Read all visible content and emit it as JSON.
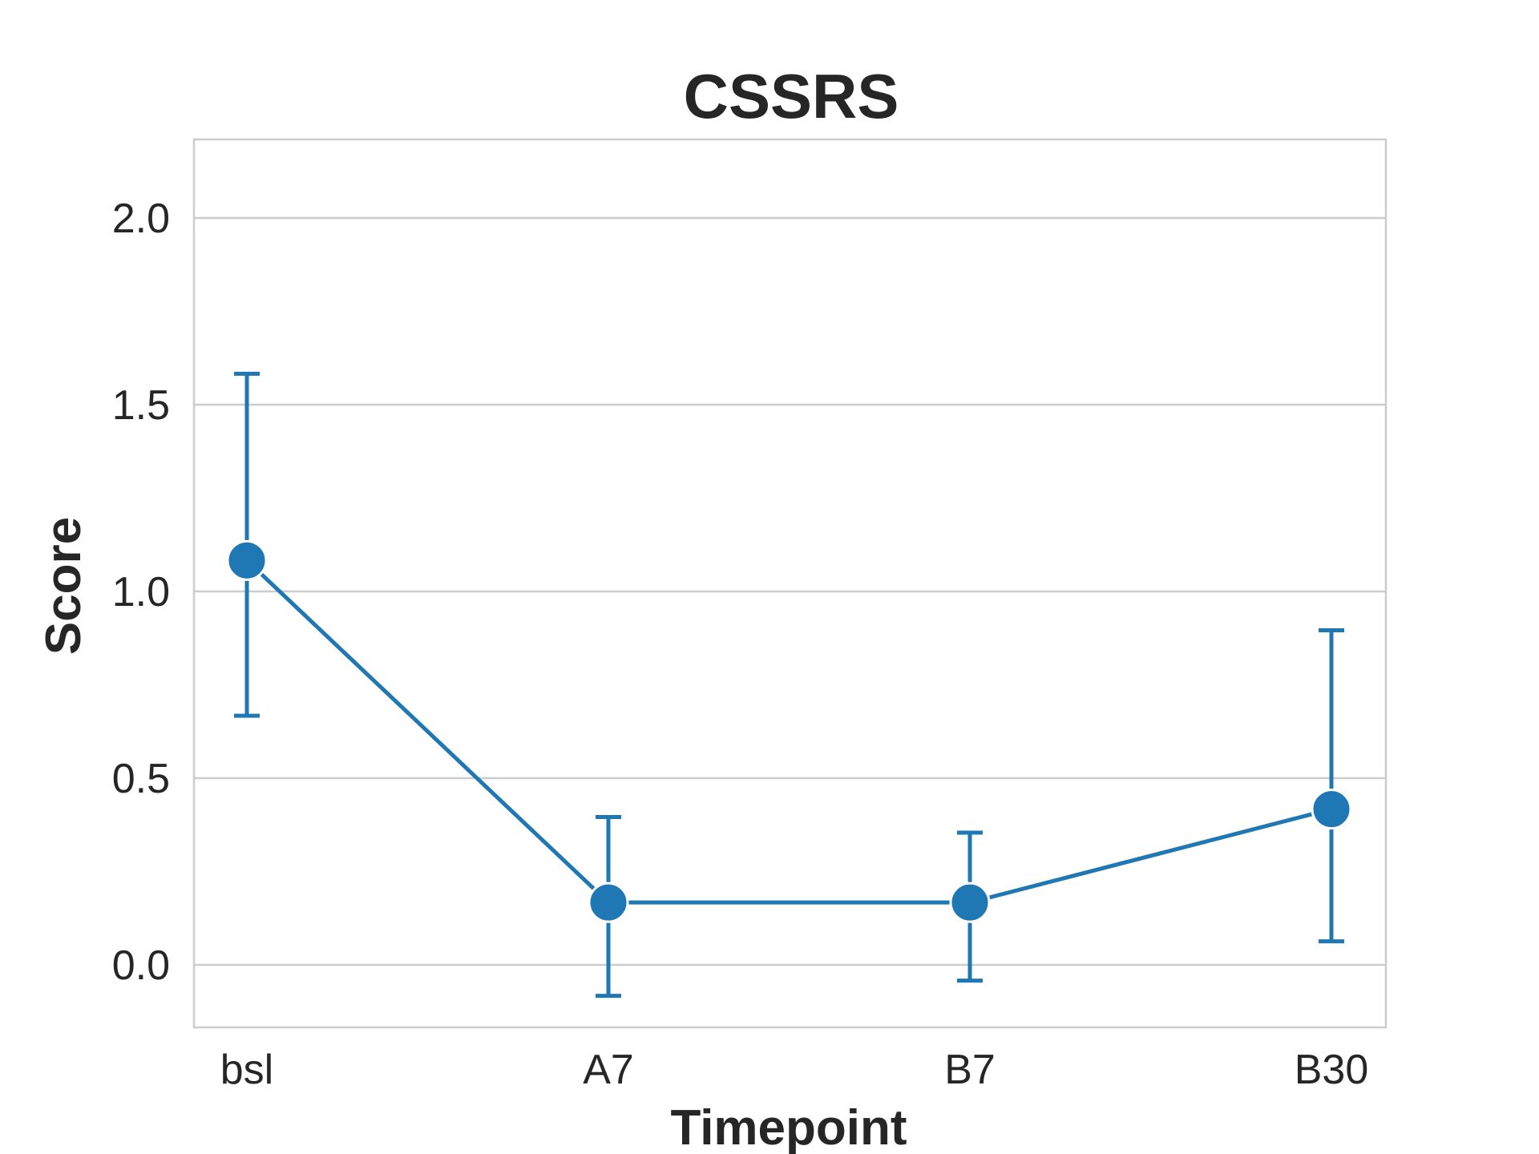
{
  "chart_data": {
    "type": "line",
    "title": "CSSRS",
    "xlabel": "Timepoint",
    "ylabel": "Score",
    "categories": [
      "bsl",
      "A7",
      "B7",
      "B30"
    ],
    "series": [
      {
        "values": [
          1.083,
          0.167,
          0.167,
          0.417
        ],
        "error_low": [
          0.667,
          -0.083,
          -0.042,
          0.063
        ],
        "error_high": [
          1.583,
          0.396,
          0.354,
          0.896
        ]
      }
    ],
    "ylim": [
      -0.167,
      2.2
    ],
    "yticks": [
      "0.0",
      "0.5",
      "1.0",
      "1.5",
      "2.0"
    ],
    "ytick_values": [
      0.0,
      0.5,
      1.0,
      1.5,
      2.0
    ],
    "grid": "horizontal",
    "legend": "none",
    "colors": {
      "series": "#1f77b4",
      "grid": "#cccccc",
      "text": "#262626"
    }
  }
}
